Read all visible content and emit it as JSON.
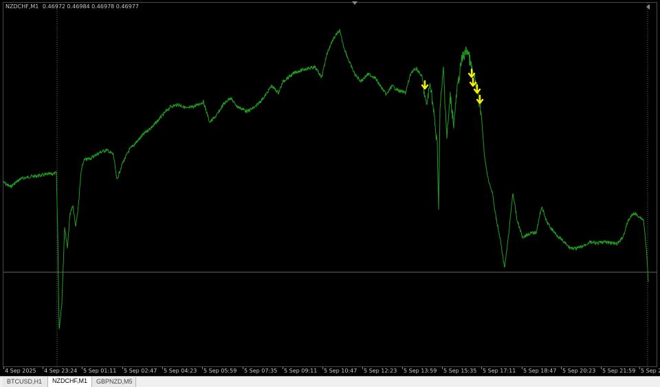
{
  "chart": {
    "symbol": "NZDCHF,M1",
    "ohlc": "0.46972 0.46984 0.46978 0.46977",
    "line_color": "#1fa01f",
    "arrow_color": "#ffee00",
    "grid_color": "#6a6a6a",
    "bid_line_color": "#6a6a6a",
    "markers": [
      "down-arrow",
      "down-arrow",
      "down-arrow",
      "down-arrow",
      "down-arrow"
    ]
  },
  "time_axis": {
    "labels": [
      "4 Sep 2025",
      "4 Sep 23:24",
      "5 Sep 01:11",
      "5 Sep 02:47",
      "5 Sep 04:23",
      "5 Sep 05:59",
      "5 Sep 07:35",
      "5 Sep 09:11",
      "5 Sep 10:47",
      "5 Sep 12:23",
      "5 Sep 13:59",
      "5 Sep 15:35",
      "5 Sep 17:11",
      "5 Sep 18:47",
      "5 Sep 20:23",
      "5 Sep 21:59",
      "5 Sep 23:"
    ]
  },
  "tabs": [
    {
      "label": "BTCUSD,H1",
      "active": false
    },
    {
      "label": "NZDCHF,M1",
      "active": true
    },
    {
      "label": "GBPNZD,M5",
      "active": false
    }
  ]
}
